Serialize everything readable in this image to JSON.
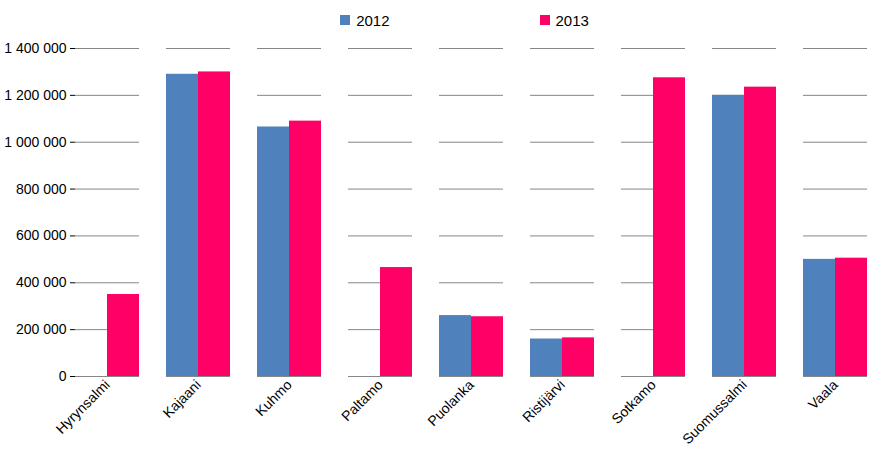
{
  "chart_data": {
    "type": "bar",
    "categories": [
      "Hyrynsalmi",
      "Kajaani",
      "Kuhmo",
      "Paltamo",
      "Puolanka",
      "Ristijärvi",
      "Sotkamo",
      "Suomussalmi",
      "Vaala"
    ],
    "series": [
      {
        "name": "2012",
        "color": "#4f81bd",
        "values": [
          null,
          1290000,
          1065000,
          null,
          260000,
          160000,
          null,
          1200000,
          500000
        ]
      },
      {
        "name": "2013",
        "color": "#ff0066",
        "values": [
          350000,
          1300000,
          1090000,
          465000,
          255000,
          165000,
          1275000,
          1235000,
          505000
        ]
      }
    ],
    "ylim": [
      0,
      1400000
    ],
    "yticks": [
      0,
      {
        "value": 200000,
        "label": "200 000"
      },
      {
        "value": 400000,
        "label": "400 000"
      },
      {
        "value": 600000,
        "label": "600 000"
      },
      {
        "value": 800000,
        "label": "800 000"
      },
      {
        "value": 1000000,
        "label": "1 000 000"
      },
      {
        "value": 1200000,
        "label": "1 200 000"
      },
      {
        "value": 1400000,
        "label": "1 400 000"
      }
    ],
    "grid": true,
    "legend": "top"
  }
}
